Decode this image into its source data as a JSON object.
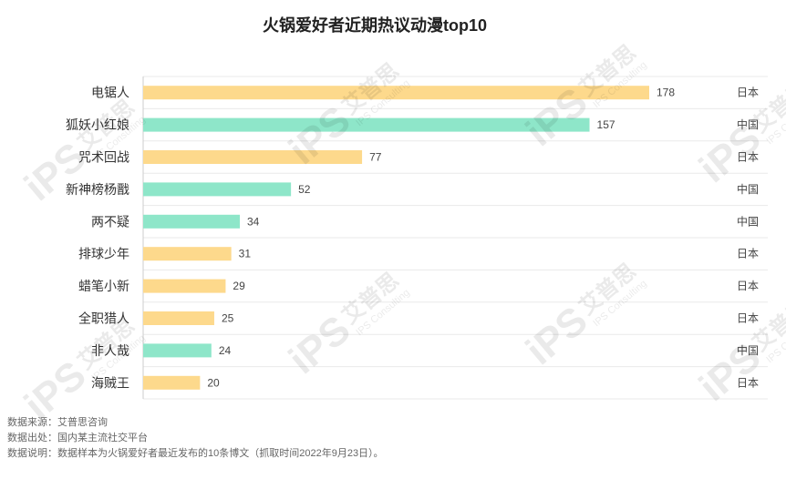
{
  "chart_data": {
    "type": "bar",
    "orientation": "horizontal",
    "title": "火锅爱好者近期热议动漫top10",
    "categories": [
      "电锯人",
      "狐妖小红娘",
      "咒术回战",
      "新神榜杨戬",
      "两不疑",
      "排球少年",
      "蜡笔小新",
      "全职猎人",
      "非人哉",
      "海贼王"
    ],
    "values": [
      178,
      157,
      77,
      52,
      34,
      31,
      29,
      25,
      24,
      20
    ],
    "origin": [
      "日本",
      "中国",
      "日本",
      "中国",
      "中国",
      "日本",
      "日本",
      "日本",
      "中国",
      "日本"
    ],
    "xlim": [
      0,
      200
    ],
    "grid": true,
    "colors": {
      "日本": "#FDD98C",
      "中国": "#8EE6C9"
    }
  },
  "footer": {
    "source": "数据来源：艾普思咨询",
    "origin": "数据出处：国内某主流社交平台",
    "note": "数据说明：数据样本为火锅爱好者最近发布的10条博文（抓取时间2022年9月23日）。"
  },
  "watermark": {
    "brand": "艾普思",
    "sub": "IPS Consulting",
    "logo": "iPS"
  }
}
